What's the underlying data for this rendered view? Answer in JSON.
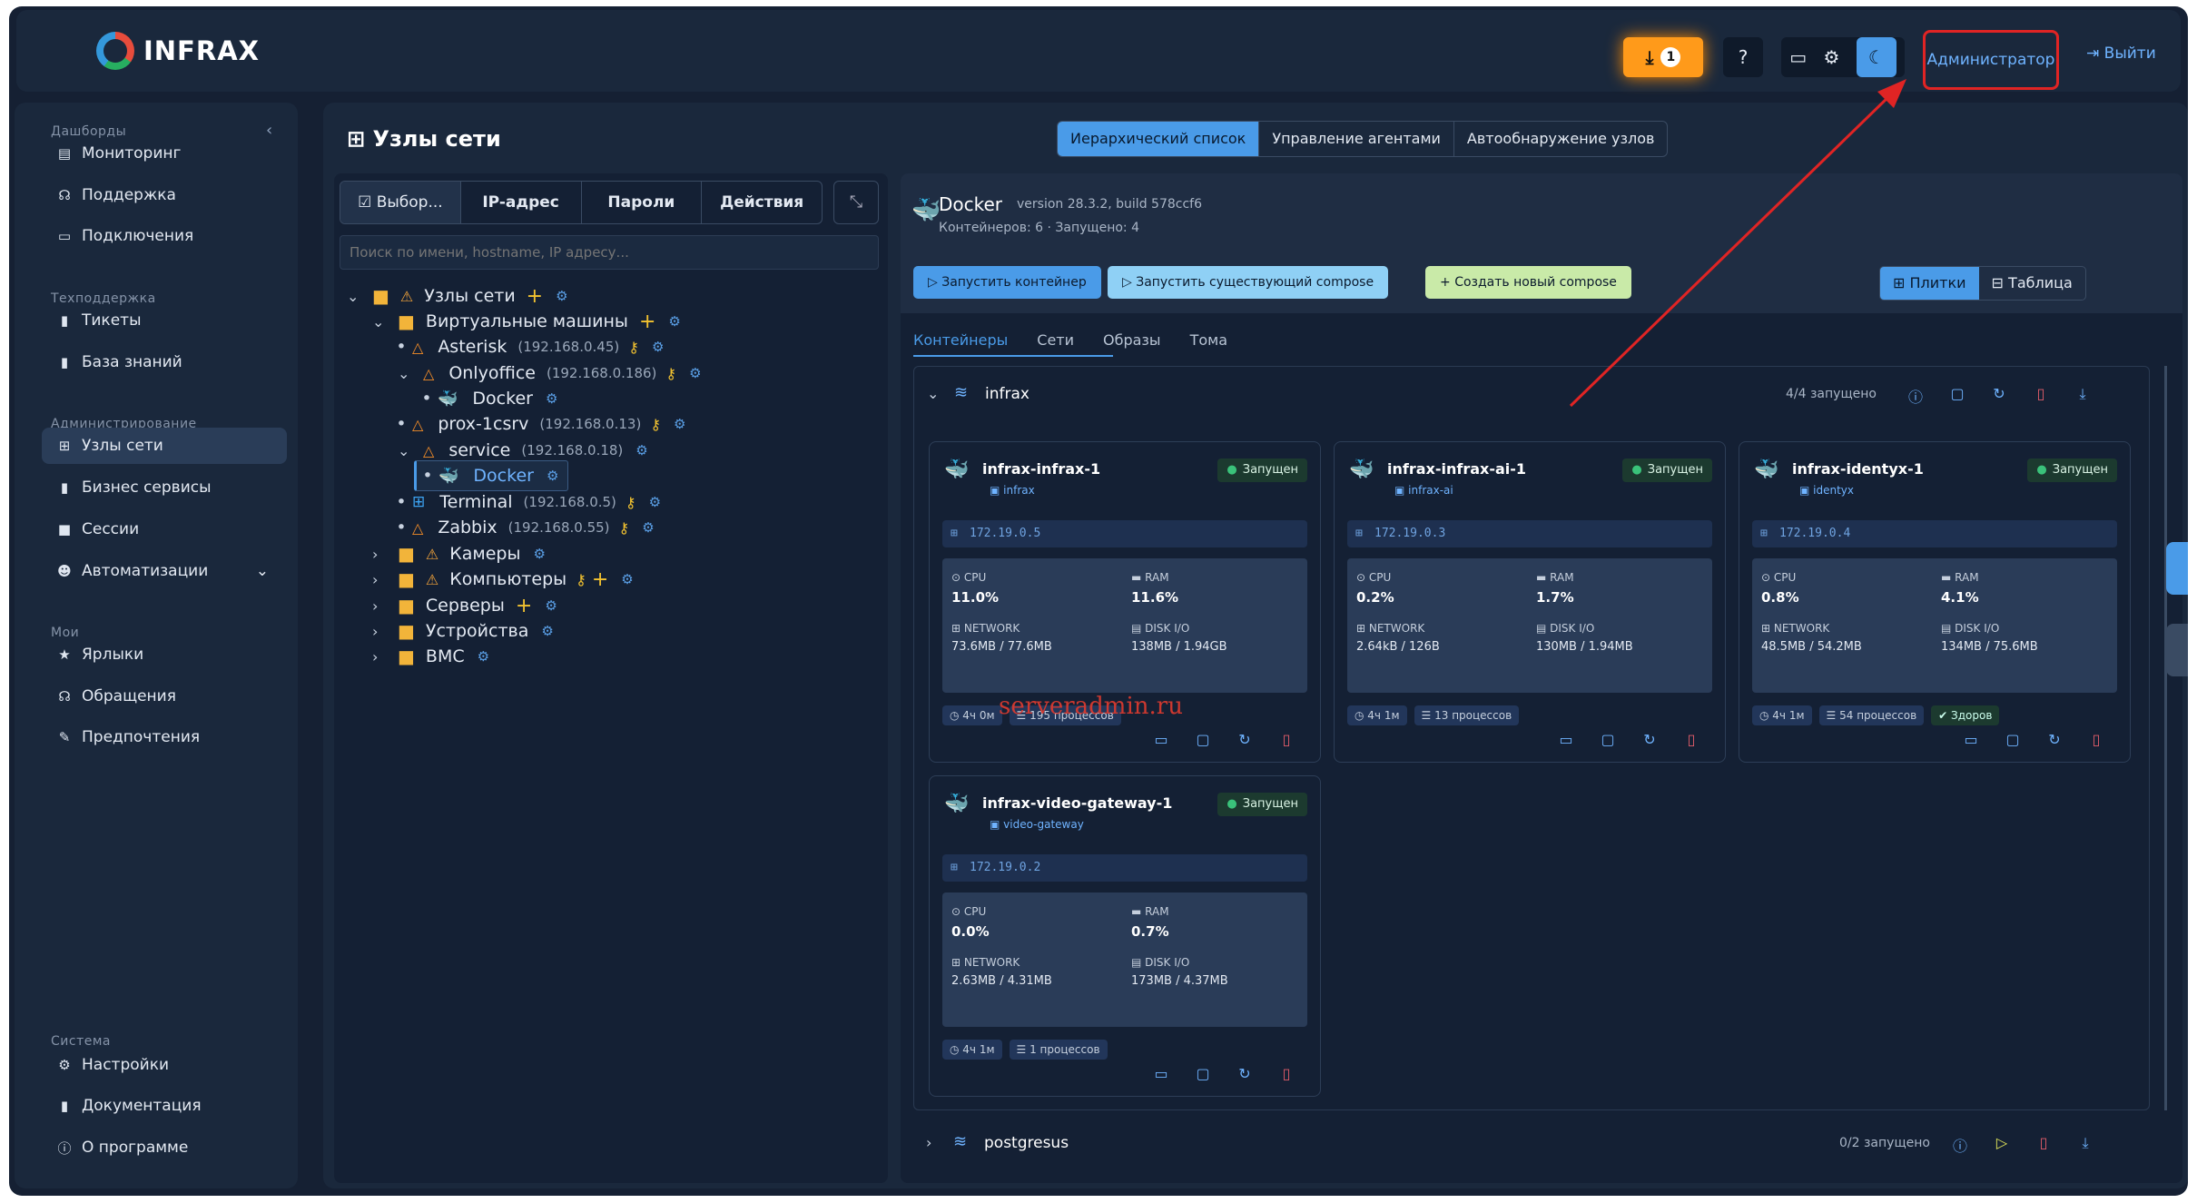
{
  "header": {
    "logo": "INFRAX",
    "download_count": "1",
    "help": "?",
    "admin": "Администратор",
    "logout": "Выйти"
  },
  "sidebar": {
    "sections": [
      {
        "title": "Дашборды",
        "items": [
          {
            "label": "Мониторинг",
            "icon": "monitoring-icon"
          },
          {
            "label": "Поддержка",
            "icon": "support-icon"
          },
          {
            "label": "Подключения",
            "icon": "monitor-icon"
          }
        ]
      },
      {
        "title": "Техподдержка",
        "items": [
          {
            "label": "Тикеты",
            "icon": "ticket-icon"
          },
          {
            "label": "База знаний",
            "icon": "book-icon"
          }
        ]
      },
      {
        "title": "Администрирование",
        "items": [
          {
            "label": "Узлы сети",
            "icon": "network-icon",
            "active": true
          },
          {
            "label": "Бизнес сервисы",
            "icon": "book-icon"
          },
          {
            "label": "Сессии",
            "icon": "camera-icon"
          },
          {
            "label": "Автоматизации",
            "icon": "robot-icon"
          }
        ]
      },
      {
        "title": "Мои",
        "items": [
          {
            "label": "Ярлыки",
            "icon": "star-icon"
          },
          {
            "label": "Обращения",
            "icon": "headset-icon"
          },
          {
            "label": "Предпочтения",
            "icon": "wrench-icon"
          }
        ]
      },
      {
        "title": "Система",
        "items": [
          {
            "label": "Настройки",
            "icon": "gears-icon"
          },
          {
            "label": "Документация",
            "icon": "book-icon"
          },
          {
            "label": "О программе",
            "icon": "info-icon"
          }
        ]
      }
    ]
  },
  "page": {
    "title": "Узлы сети",
    "tabs": [
      "Иерархический список",
      "Управление агентами",
      "Автообнаружение узлов"
    ]
  },
  "tree": {
    "toolbar": [
      "☑ Выбор...",
      "IP-адрес",
      "Пароли",
      "Действия"
    ],
    "search_placeholder": "Поиск по имени, hostname, IP адресу...",
    "nodes": {
      "root": "Узлы сети",
      "vms": "Виртуальные машины",
      "asterisk": "Asterisk",
      "asterisk_ip": "(192.168.0.45)",
      "onlyoffice": "Onlyoffice",
      "onlyoffice_ip": "(192.168.0.186)",
      "docker1": "Docker",
      "prox": "prox-1csrv",
      "prox_ip": "(192.168.0.13)",
      "service": "service",
      "service_ip": "(192.168.0.18)",
      "docker2": "Docker",
      "terminal": "Terminal",
      "terminal_ip": "(192.168.0.5)",
      "zabbix": "Zabbix",
      "zabbix_ip": "(192.168.0.55)",
      "cameras": "Камеры",
      "computers": "Компьютеры",
      "servers": "Серверы",
      "devices": "Устройства",
      "bmc": "BMC"
    }
  },
  "docker": {
    "name": "Docker",
    "version": "version 28.3.2, build 578ccf6",
    "summary": "Контейнеров: 6 · Запущено: 4",
    "buttons": {
      "run": "Запустить контейнер",
      "run_compose": "Запустить существующий compose",
      "new_compose": "Создать новый compose"
    },
    "views": [
      "Плитки",
      "Таблица"
    ],
    "tabs": [
      "Контейнеры",
      "Сети",
      "Образы",
      "Тома"
    ],
    "stack1": {
      "name": "infrax",
      "status": "4/4 запущено"
    },
    "stack2": {
      "name": "postgresus",
      "status": "0/2 запущено"
    },
    "labels": {
      "cpu": "CPU",
      "ram": "RAM",
      "network": "NETWORK",
      "disk": "DISK I/O",
      "running": "Запущен"
    },
    "containers": [
      {
        "name": "infrax-infrax-1",
        "net": "infrax",
        "ip": "172.19.0.5",
        "cpu": "11.0%",
        "ram": "11.6%",
        "network": "73.6MB / 77.6MB",
        "disk": "138MB / 1.94GB",
        "uptime": "4ч 0м",
        "procs": "195 процессов"
      },
      {
        "name": "infrax-infrax-ai-1",
        "net": "infrax-ai",
        "ip": "172.19.0.3",
        "cpu": "0.2%",
        "ram": "1.7%",
        "network": "2.64kB / 126B",
        "disk": "130MB / 1.94MB",
        "uptime": "4ч 1м",
        "procs": "13 процессов"
      },
      {
        "name": "infrax-identyx-1",
        "net": "identyx",
        "ip": "172.19.0.4",
        "cpu": "0.8%",
        "ram": "4.1%",
        "network": "48.5MB / 54.2MB",
        "disk": "134MB / 75.6MB",
        "uptime": "4ч 1м",
        "procs": "54 процессов",
        "health": "Здоров"
      },
      {
        "name": "infrax-video-gateway-1",
        "net": "video-gateway",
        "ip": "172.19.0.2",
        "cpu": "0.0%",
        "ram": "0.7%",
        "network": "2.63MB / 4.31MB",
        "disk": "173MB / 4.37MB",
        "uptime": "4ч 1м",
        "procs": "1 процессов"
      }
    ]
  },
  "watermark": "serveradmin.ru",
  "colors": {
    "accent": "#4a9be8",
    "download": "#ff9a1a",
    "highlight_box": "#e02424",
    "running": "#3ac27a"
  }
}
